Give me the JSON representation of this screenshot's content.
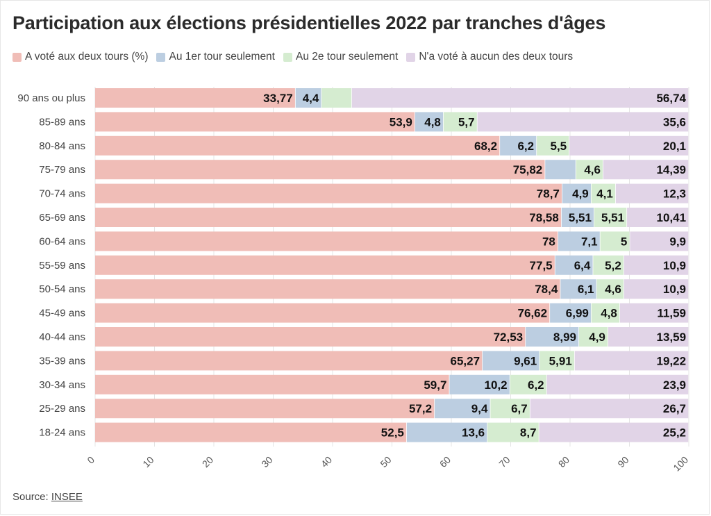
{
  "title": "Participation aux élections présidentielles 2022 par tranches d'âges",
  "source_label": "Source:",
  "source_link": "INSEE",
  "colors": {
    "both": "#f0bdb7",
    "first_only": "#bccee1",
    "second_only": "#d5ecd0",
    "none": "#e1d4e7"
  },
  "chart_data": {
    "type": "bar",
    "orientation": "horizontal",
    "stacked": true,
    "categories": [
      "90 ans ou plus",
      "85-89 ans",
      "80-84 ans",
      "75-79 ans",
      "70-74 ans",
      "65-69 ans",
      "60-64 ans",
      "55-59 ans",
      "50-54 ans",
      "45-49 ans",
      "40-44 ans",
      "35-39 ans",
      "30-34 ans",
      "25-29 ans",
      "18-24 ans"
    ],
    "series": [
      {
        "name": "A voté aux deux tours (%)",
        "key": "both",
        "values": [
          33.77,
          53.9,
          68.2,
          75.82,
          78.7,
          78.58,
          78,
          77.5,
          78.4,
          76.62,
          72.53,
          65.27,
          59.7,
          57.2,
          52.5
        ],
        "labels": [
          "33,77",
          "53,9",
          "68,2",
          "75,82",
          "78,7",
          "78,58",
          "78",
          "77,5",
          "78,4",
          "76,62",
          "72,53",
          "65,27",
          "59,7",
          "57,2",
          "52,5"
        ]
      },
      {
        "name": "Au 1er tour seulement",
        "key": "first_only",
        "values": [
          4.4,
          4.8,
          6.2,
          5.19,
          4.9,
          5.51,
          7.1,
          6.4,
          6.1,
          6.99,
          8.99,
          9.61,
          10.2,
          9.4,
          13.6
        ],
        "labels": [
          "4,4",
          "4,8",
          "6,2",
          "",
          "4,9",
          "5,51",
          "7,1",
          "6,4",
          "6,1",
          "6,99",
          "8,99",
          "9,61",
          "10,2",
          "9,4",
          "13,6"
        ]
      },
      {
        "name": "Au 2e tour seulement",
        "key": "second_only",
        "values": [
          5.09,
          5.7,
          5.5,
          4.6,
          4.1,
          5.51,
          5,
          5.2,
          4.6,
          4.8,
          4.9,
          5.91,
          6.2,
          6.7,
          8.7
        ],
        "labels": [
          "",
          "5,7",
          "5,5",
          "4,6",
          "4,1",
          "5,51",
          "5",
          "5,2",
          "4,6",
          "4,8",
          "4,9",
          "5,91",
          "6,2",
          "6,7",
          "8,7"
        ]
      },
      {
        "name": "N'a voté à aucun des deux tours",
        "key": "none",
        "values": [
          56.74,
          35.6,
          20.1,
          14.39,
          12.3,
          10.41,
          9.9,
          10.9,
          10.9,
          11.59,
          13.59,
          19.22,
          23.9,
          26.7,
          25.2
        ],
        "labels": [
          "56,74",
          "35,6",
          "20,1",
          "14,39",
          "12,3",
          "10,41",
          "9,9",
          "10,9",
          "10,9",
          "11,59",
          "13,59",
          "19,22",
          "23,9",
          "26,7",
          "25,2"
        ]
      }
    ],
    "x_ticks": [
      0,
      10,
      20,
      30,
      40,
      50,
      60,
      70,
      80,
      90,
      100
    ],
    "xlim": [
      0,
      100
    ],
    "xlabel": "",
    "ylabel": "",
    "grid": true,
    "legend_position": "top-left"
  }
}
